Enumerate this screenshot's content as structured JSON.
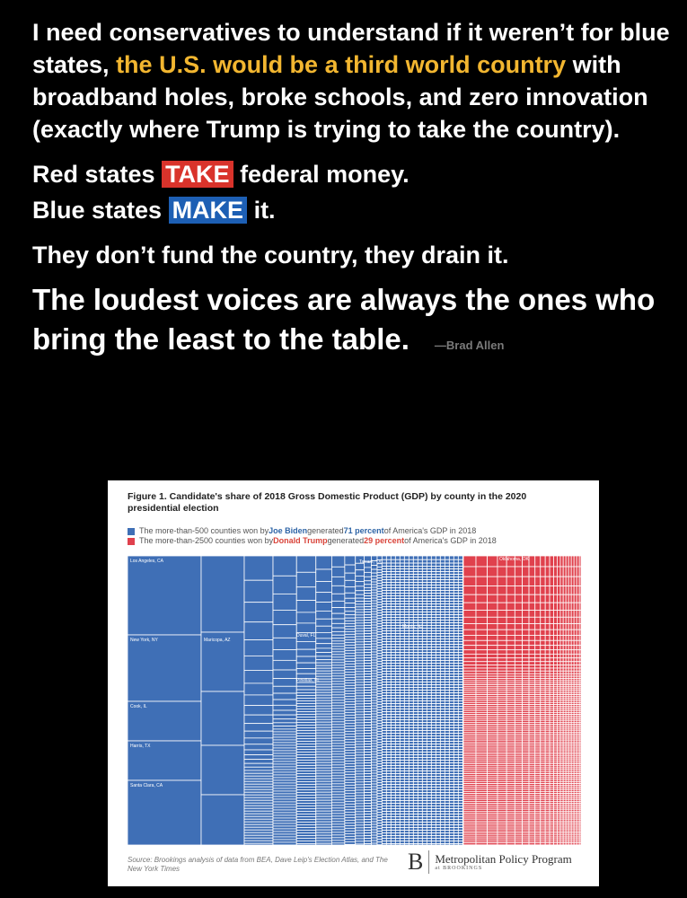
{
  "post": {
    "para1_pre": "I need conservatives to understand if it weren’t for blue states, ",
    "para1_highlight": "the U.S. would be a third world country",
    "para1_post": " with broadband holes, broke schools, and zero innovation (exactly where Trump is trying to take the country).",
    "red_pre": "Red states ",
    "red_word": "TAKE",
    "red_post": " federal money.",
    "blue_pre": "Blue states ",
    "blue_word": "MAKE",
    "blue_post": " it.",
    "drain": "They don’t fund the country, they drain it.",
    "loud": "The loudest voices are always the ones who bring the least to the table.",
    "attribution": "—Brad Allen"
  },
  "figure": {
    "title": "Figure 1. Candidate's share of 2018 Gross Domestic Product (GDP) by county in the 2020 presidential election",
    "legend": [
      {
        "pre": "The more-than-500 counties won by ",
        "name": "Joe Biden",
        "mid": " generated ",
        "pct": "71 percent",
        "post": " of America's GDP in 2018"
      },
      {
        "pre": "The more-than-2500 counties won by ",
        "name": "Donald Trump",
        "mid": " generated ",
        "pct": "29 percent",
        "post": " of America's GDP in 2018"
      }
    ],
    "source": "Source: Brookings analysis of data from BEA, Dave Leip's Election Atlas, and The New York Times",
    "brand_logo": "B",
    "brand_program": "Metropolitan Policy Program",
    "brand_org": "at BROOKINGS"
  },
  "colors": {
    "blue": "#3f6fb6",
    "red": "#e0414d",
    "accent_yellow": "#f2b630"
  },
  "chart_data": {
    "type": "treemap",
    "title": "Figure 1. Candidate's share of 2018 Gross Domestic Product (GDP) by county in the 2020 presidential election",
    "series": [
      {
        "name": "Joe Biden",
        "counties": "more than 500",
        "gdp_share_pct": 71
      },
      {
        "name": "Donald Trump",
        "counties": "more than 2500",
        "gdp_share_pct": 29
      }
    ],
    "labeled_counties": [
      {
        "label": "Los Angeles, CA",
        "winner": "Joe Biden"
      },
      {
        "label": "New York, NY",
        "winner": "Joe Biden"
      },
      {
        "label": "Cook, IL",
        "winner": "Joe Biden"
      },
      {
        "label": "Harris, TX",
        "winner": "Joe Biden"
      },
      {
        "label": "Santa Clara, CA",
        "winner": "Joe Biden"
      },
      {
        "label": "Maricopa, AZ",
        "winner": "Joe Biden"
      },
      {
        "label": "Tarrant, TX",
        "winner": "Donald Trump"
      },
      {
        "label": "Duval, FL",
        "winner": "Joe Biden"
      },
      {
        "label": "Pinellas, FL",
        "winner": "Joe Biden"
      },
      {
        "label": "Morris, NJ",
        "winner": "Joe Biden"
      },
      {
        "label": "Oklahoma, OK",
        "winner": "Donald Trump"
      }
    ]
  }
}
